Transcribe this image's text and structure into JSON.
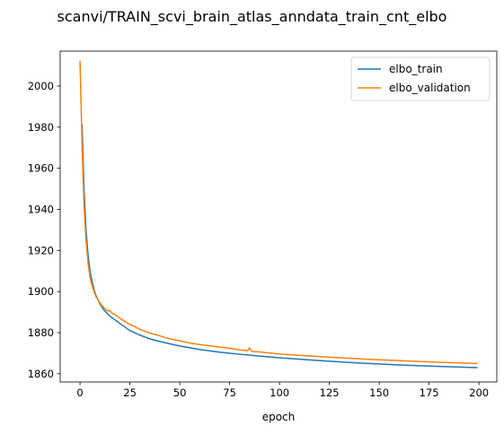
{
  "chart_data": {
    "type": "line",
    "title": "scanvi/TRAIN_scvi_brain_atlas_anndata_train_cnt_elbo",
    "xlabel": "epoch",
    "ylabel": "",
    "xlim": [
      -9.95,
      208.95
    ],
    "ylim": [
      1856,
      2017
    ],
    "xticks": [
      0,
      25,
      50,
      75,
      100,
      125,
      150,
      175,
      200
    ],
    "yticks": [
      1860,
      1880,
      1900,
      1920,
      1940,
      1960,
      1980,
      2000
    ],
    "grid": false,
    "legend_position": "upper right",
    "series": [
      {
        "name": "elbo_train",
        "color": "#1f77b4",
        "x": [
          1,
          2,
          3,
          4,
          5,
          6,
          7,
          8,
          10,
          12,
          15,
          20,
          25,
          30,
          35,
          40,
          50,
          60,
          70,
          80,
          90,
          100,
          120,
          140,
          160,
          180,
          199
        ],
        "y": [
          1981,
          1950,
          1930,
          1918,
          1910,
          1905,
          1901,
          1898,
          1894,
          1891,
          1888,
          1884.5,
          1881,
          1878.8,
          1877,
          1875.7,
          1873.5,
          1871.8,
          1870.5,
          1869.5,
          1868.6,
          1867.8,
          1866.4,
          1865.2,
          1864.3,
          1863.6,
          1863
        ]
      },
      {
        "name": "elbo_validation",
        "color": "#ff7f0e",
        "x": [
          0,
          1,
          2,
          3,
          4,
          5,
          6,
          7,
          8,
          10,
          12,
          14,
          15,
          16,
          18,
          20,
          22,
          25,
          27,
          30,
          33,
          36,
          40,
          43,
          46,
          50,
          55,
          60,
          65,
          70,
          75,
          80,
          84,
          85,
          86,
          87,
          90,
          95,
          100,
          110,
          120,
          130,
          140,
          150,
          160,
          170,
          180,
          190,
          199
        ],
        "y": [
          2012,
          1972,
          1942,
          1925,
          1914,
          1907,
          1903,
          1900,
          1897.5,
          1894.5,
          1892,
          1890.5,
          1890.8,
          1889.5,
          1888.5,
          1887,
          1885.8,
          1884,
          1883.2,
          1881.6,
          1880.5,
          1879.5,
          1878.5,
          1877.5,
          1876.8,
          1876,
          1875,
          1874.2,
          1873.6,
          1873,
          1872.4,
          1871.6,
          1871.2,
          1872.6,
          1871.0,
          1870.8,
          1870.6,
          1870.1,
          1869.6,
          1869,
          1868.4,
          1867.8,
          1867.3,
          1866.8,
          1866.4,
          1866,
          1865.6,
          1865.3,
          1865
        ]
      }
    ]
  }
}
